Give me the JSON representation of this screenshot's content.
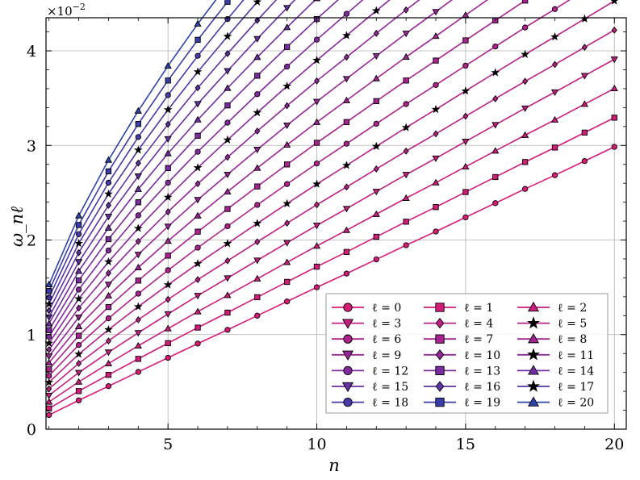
{
  "chart_data": {
    "type": "line",
    "xlabel": "n",
    "ylabel": "ω_nℓ",
    "y_scale_label": "×10",
    "y_scale_exponent": "−2",
    "xlim": [
      0.9,
      20.4
    ],
    "ylim": [
      0,
      4.35
    ],
    "x_ticks": [
      5,
      10,
      15,
      20
    ],
    "y_ticks": [
      0,
      1,
      2,
      3,
      4
    ],
    "grid": true,
    "legend_placement": "lower-right",
    "legend_columns": 3,
    "x": [
      1,
      2,
      3,
      4,
      5,
      6,
      7,
      8,
      9,
      10,
      11,
      12,
      13,
      14,
      15,
      16,
      17,
      18,
      19,
      20
    ],
    "series_formula": "omega(n, l) = base(n) + 0.069 * sqrt(n) * l  (values in units of 1e-2)",
    "base_values": [
      0.15,
      0.305,
      0.455,
      0.605,
      0.755,
      0.905,
      1.05,
      1.2,
      1.35,
      1.5,
      1.645,
      1.795,
      1.945,
      2.09,
      2.24,
      2.39,
      2.54,
      2.685,
      2.835,
      2.985
    ],
    "l_step_per_sqrt_n": 0.069,
    "series": [
      {
        "name": "ℓ = 0",
        "l": 0,
        "marker": "circle",
        "color": "#d81b77"
      },
      {
        "name": "ℓ = 1",
        "l": 1,
        "marker": "square",
        "color": "#d11c7a"
      },
      {
        "name": "ℓ = 2",
        "l": 2,
        "marker": "triangle",
        "color": "#cb1d7e"
      },
      {
        "name": "ℓ = 3",
        "l": 3,
        "marker": "tri-down",
        "color": "#c41e82"
      },
      {
        "name": "ℓ = 4",
        "l": 4,
        "marker": "diamond",
        "color": "#bd2085"
      },
      {
        "name": "ℓ = 5",
        "l": 5,
        "marker": "star",
        "color": "#b62189"
      },
      {
        "name": "ℓ = 6",
        "l": 6,
        "marker": "circle",
        "color": "#af228c"
      },
      {
        "name": "ℓ = 7",
        "l": 7,
        "marker": "square",
        "color": "#a82390"
      },
      {
        "name": "ℓ = 8",
        "l": 8,
        "marker": "triangle",
        "color": "#a12493"
      },
      {
        "name": "ℓ = 9",
        "l": 9,
        "marker": "tri-down",
        "color": "#9a2596"
      },
      {
        "name": "ℓ = 10",
        "l": 10,
        "marker": "diamond",
        "color": "#922799"
      },
      {
        "name": "ℓ = 11",
        "l": 11,
        "marker": "star",
        "color": "#8a289b"
      },
      {
        "name": "ℓ = 12",
        "l": 12,
        "marker": "circle",
        "color": "#822a9d"
      },
      {
        "name": "ℓ = 13",
        "l": 13,
        "marker": "square",
        "color": "#7a2b9f"
      },
      {
        "name": "ℓ = 14",
        "l": 14,
        "marker": "triangle",
        "color": "#712da1"
      },
      {
        "name": "ℓ = 15",
        "l": 15,
        "marker": "tri-down",
        "color": "#682fa2"
      },
      {
        "name": "ℓ = 16",
        "l": 16,
        "marker": "diamond",
        "color": "#5e32a4"
      },
      {
        "name": "ℓ = 17",
        "l": 17,
        "marker": "star",
        "color": "#5335a5"
      },
      {
        "name": "ℓ = 18",
        "l": 18,
        "marker": "circle",
        "color": "#4739a7"
      },
      {
        "name": "ℓ = 19",
        "l": 19,
        "marker": "square",
        "color": "#3a3da8"
      },
      {
        "name": "ℓ = 20",
        "l": 20,
        "marker": "triangle",
        "color": "#2c43a9"
      }
    ]
  }
}
